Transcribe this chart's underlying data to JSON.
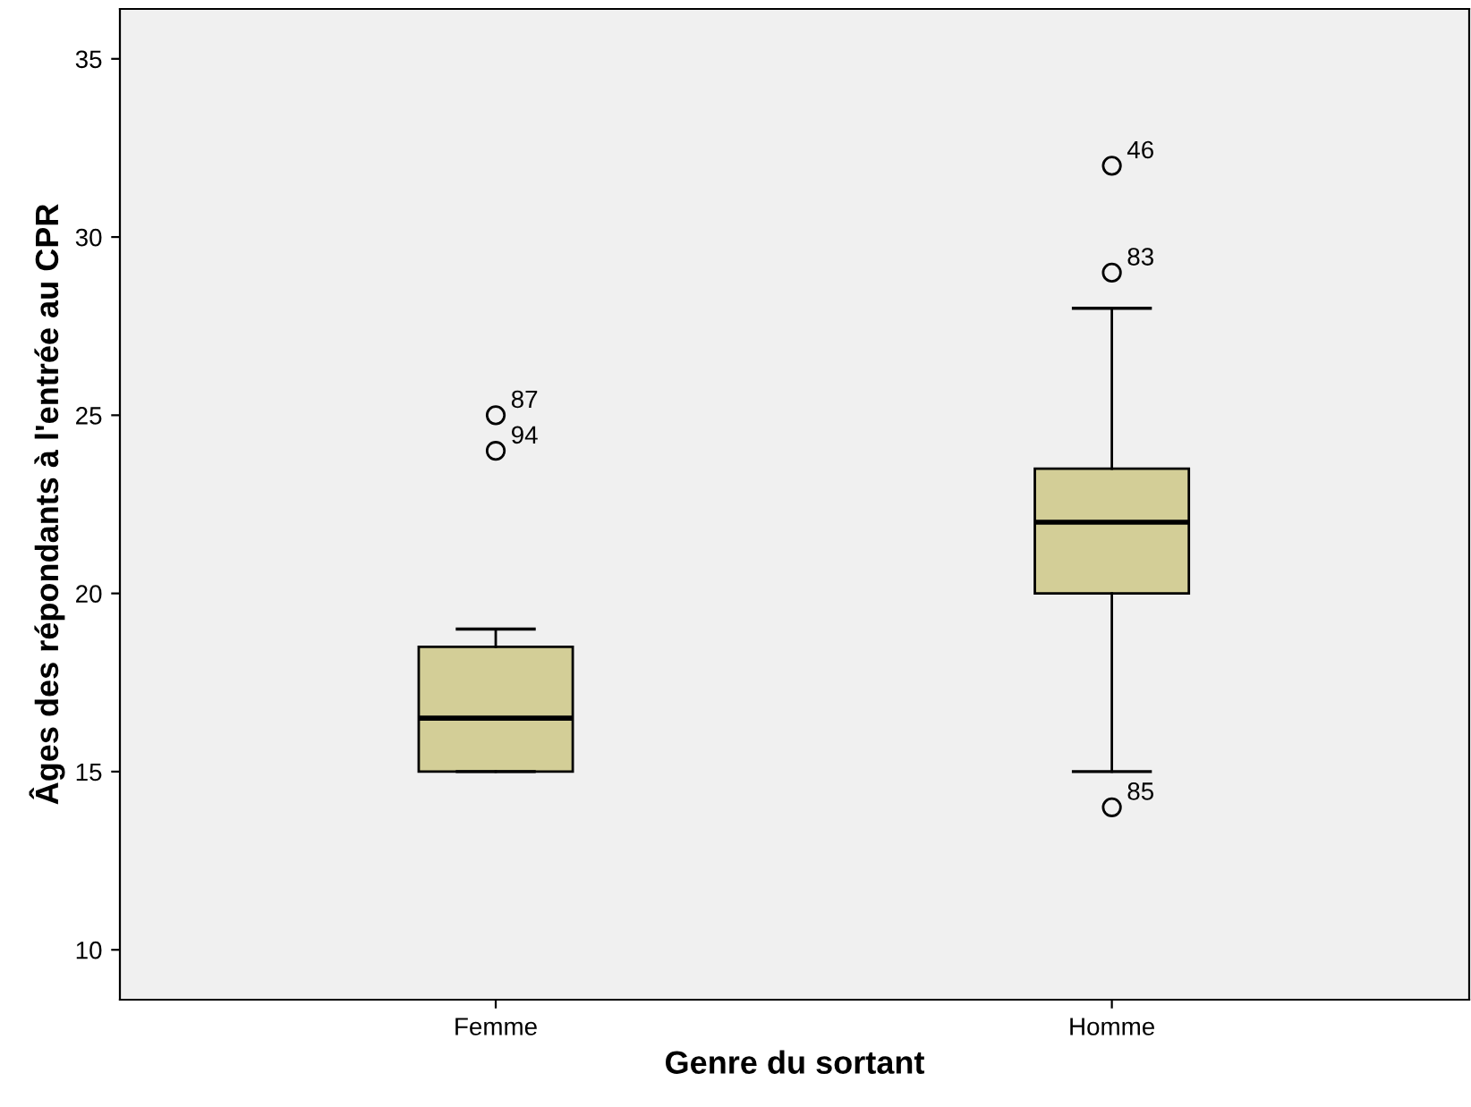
{
  "chart_data": {
    "type": "box",
    "xlabel": "Genre du sortant",
    "ylabel": "Âges des répondants à l'entrée au CPR",
    "categories": [
      "Femme",
      "Homme"
    ],
    "color": "#d3ce97",
    "boxes": [
      {
        "low": 15,
        "q1": 15,
        "median": 16.5,
        "q3": 18.5,
        "high": 19,
        "outliers": [
          25,
          24
        ]
      },
      {
        "low": 15,
        "q1": 20,
        "median": 22,
        "q3": 23.5,
        "high": 28,
        "outliers": [
          32,
          29,
          14
        ]
      }
    ],
    "ylim": [
      8.6,
      36.4
    ],
    "yticks": [
      10,
      15,
      20,
      25,
      30,
      35
    ],
    "grid": false,
    "annotations": [
      "87",
      "94",
      "46",
      "83",
      "85"
    ]
  }
}
